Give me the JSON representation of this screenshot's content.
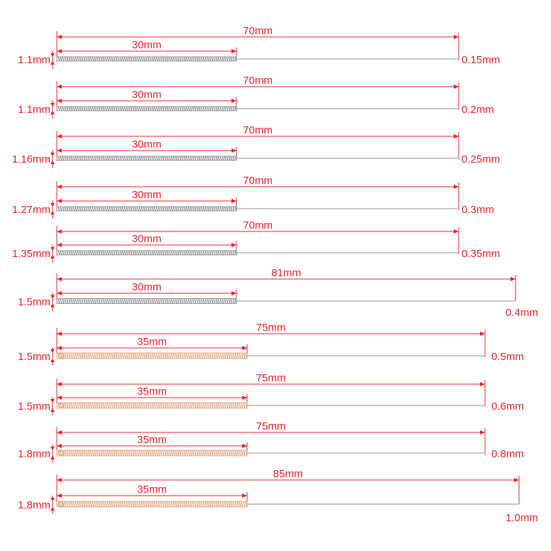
{
  "colors": {
    "dimension": "#e8202a",
    "steel_coil": "#8a8a8a",
    "copper_coil": "#e9a070",
    "wire": "#c8c8c8"
  },
  "rows": [
    {
      "total_length": "70mm",
      "coil_length": "30mm",
      "coil_diameter": "1.1mm",
      "wire_diameter": "0.15mm",
      "coil_type": "steel"
    },
    {
      "total_length": "70mm",
      "coil_length": "30mm",
      "coil_diameter": "1.1mm",
      "wire_diameter": "0.2mm",
      "coil_type": "steel"
    },
    {
      "total_length": "70mm",
      "coil_length": "30mm",
      "coil_diameter": "1.16mm",
      "wire_diameter": "0.25mm",
      "coil_type": "steel"
    },
    {
      "total_length": "70mm",
      "coil_length": "30mm",
      "coil_diameter": "1.27mm",
      "wire_diameter": "0.3mm",
      "coil_type": "steel"
    },
    {
      "total_length": "70mm",
      "coil_length": "30mm",
      "coil_diameter": "1.35mm",
      "wire_diameter": "0.35mm",
      "coil_type": "steel"
    },
    {
      "total_length": "81mm",
      "coil_length": "30mm",
      "coil_diameter": "1.5mm",
      "wire_diameter": "0.4mm",
      "coil_type": "steel"
    },
    {
      "total_length": "75mm",
      "coil_length": "35mm",
      "coil_diameter": "1.5mm",
      "wire_diameter": "0.5mm",
      "coil_type": "copper"
    },
    {
      "total_length": "75mm",
      "coil_length": "35mm",
      "coil_diameter": "1.5mm",
      "wire_diameter": "0.6mm",
      "coil_type": "copper"
    },
    {
      "total_length": "75mm",
      "coil_length": "35mm",
      "coil_diameter": "1.8mm",
      "wire_diameter": "0.8mm",
      "coil_type": "copper"
    },
    {
      "total_length": "85mm",
      "coil_length": "35mm",
      "coil_diameter": "1.8mm",
      "wire_diameter": "1.0mm",
      "coil_type": "copper"
    }
  ]
}
